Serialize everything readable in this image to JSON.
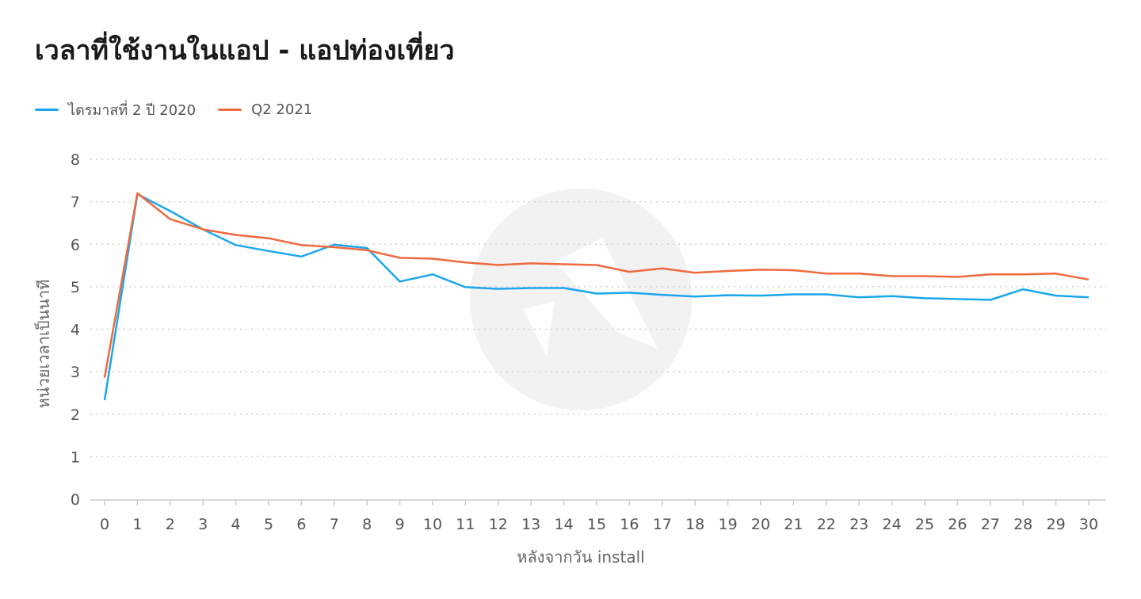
{
  "title": "เวลาที่ใช้งานในแอป - แอปท่องเที่ยว",
  "chart_data": {
    "type": "line",
    "title": "เวลาที่ใช้งานในแอป - แอปท่องเที่ยว",
    "xlabel": "หลังจากวัน install",
    "ylabel": "หน่วยเวลาเป็นนาที",
    "x": [
      0,
      1,
      2,
      3,
      4,
      5,
      6,
      7,
      8,
      9,
      10,
      11,
      12,
      13,
      14,
      15,
      16,
      17,
      18,
      19,
      20,
      21,
      22,
      23,
      24,
      25,
      26,
      27,
      28,
      29,
      30
    ],
    "xlim": [
      0,
      30
    ],
    "ylim": [
      0,
      8
    ],
    "yticks": [
      0,
      1,
      2,
      3,
      4,
      5,
      6,
      7,
      8
    ],
    "grid": true,
    "legend": "top-left",
    "series": [
      {
        "name": "ไตรมาสที่ 2 ปี 2020",
        "color": "#1aa7ec",
        "values": [
          2.33,
          7.18,
          6.78,
          6.35,
          5.98,
          5.84,
          5.71,
          5.99,
          5.91,
          5.12,
          5.29,
          4.99,
          4.95,
          4.97,
          4.97,
          4.84,
          4.86,
          4.81,
          4.77,
          4.8,
          4.79,
          4.82,
          4.82,
          4.75,
          4.78,
          4.73,
          4.71,
          4.69,
          4.94,
          4.79,
          4.75
        ]
      },
      {
        "name": "Q2 2021",
        "color": "#ef6a3e",
        "values": [
          2.86,
          7.2,
          6.59,
          6.35,
          6.22,
          6.14,
          5.98,
          5.93,
          5.86,
          5.68,
          5.66,
          5.57,
          5.51,
          5.55,
          5.53,
          5.51,
          5.35,
          5.43,
          5.33,
          5.37,
          5.4,
          5.39,
          5.31,
          5.31,
          5.25,
          5.25,
          5.23,
          5.29,
          5.29,
          5.31,
          5.17
        ]
      }
    ]
  }
}
